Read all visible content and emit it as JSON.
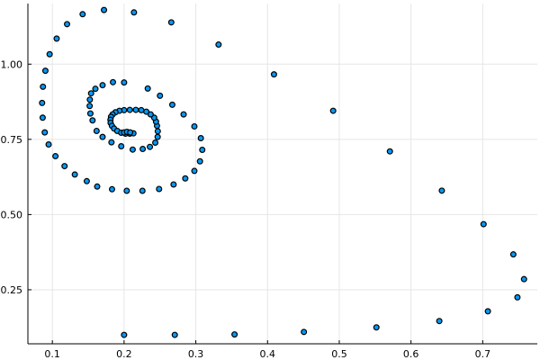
{
  "chart_data": {
    "type": "scatter",
    "title": "",
    "xlabel": "",
    "ylabel": "",
    "xlim": [
      0.0659,
      0.7761
    ],
    "ylim": [
      0.0703,
      1.2013
    ],
    "xticks": [
      0.1,
      0.2,
      0.3,
      0.4,
      0.5,
      0.6,
      0.7
    ],
    "xtick_labels": [
      "0.1",
      "0.2",
      "0.3",
      "0.4",
      "0.5",
      "0.6",
      "0.7"
    ],
    "yticks": [
      0.25,
      0.5,
      0.75,
      1.0
    ],
    "ytick_labels": [
      "0.25",
      "0.50",
      "0.75",
      "1.00"
    ],
    "grid": true,
    "legend": "none",
    "marker_color": "#009AFA",
    "marker_edge_color": "#000000",
    "series": [
      {
        "x": [
          0.2,
          0.2707,
          0.354,
          0.4507,
          0.5518,
          0.6395,
          0.7072,
          0.7484,
          0.7576,
          0.7427,
          0.7012,
          0.643,
          0.5706,
          0.4915,
          0.409,
          0.3317,
          0.2658,
          0.2138,
          0.172,
          0.1422,
          0.1205,
          0.106,
          0.0962,
          0.0903,
          0.0869,
          0.0857,
          0.0865,
          0.0894,
          0.0948,
          0.1043,
          0.117,
          0.1313,
          0.148,
          0.1625,
          0.1832,
          0.2037,
          0.2256,
          0.2488,
          0.269,
          0.2853,
          0.298,
          0.3058,
          0.309,
          0.307,
          0.298,
          0.283,
          0.2672,
          0.25,
          0.233,
          0.2,
          0.1845,
          0.17,
          0.16,
          0.154,
          0.1523,
          0.152,
          0.153,
          0.156,
          0.1617,
          0.17,
          0.1824,
          0.196,
          0.212,
          0.226,
          0.236,
          0.2435,
          0.2468,
          0.247,
          0.2459,
          0.2445,
          0.242,
          0.237,
          0.231,
          0.224,
          0.2164,
          0.208,
          0.2,
          0.1935,
          0.188,
          0.184,
          0.1818,
          0.181,
          0.1812,
          0.183,
          0.186,
          0.1905,
          0.196,
          0.202,
          0.208,
          0.213,
          0.2,
          0.204,
          0.2085
        ],
        "y": [
          0.1,
          0.1,
          0.1014,
          0.1097,
          0.125,
          0.146,
          0.1783,
          0.2247,
          0.2852,
          0.3675,
          0.468,
          0.5795,
          0.71,
          0.845,
          0.966,
          1.065,
          1.139,
          1.172,
          1.18,
          1.166,
          1.133,
          1.085,
          1.033,
          0.978,
          0.925,
          0.871,
          0.822,
          0.773,
          0.733,
          0.694,
          0.661,
          0.633,
          0.611,
          0.593,
          0.584,
          0.579,
          0.579,
          0.585,
          0.6,
          0.62,
          0.645,
          0.677,
          0.715,
          0.754,
          0.793,
          0.833,
          0.865,
          0.895,
          0.919,
          0.939,
          0.94,
          0.93,
          0.918,
          0.903,
          0.882,
          0.861,
          0.836,
          0.813,
          0.778,
          0.758,
          0.74,
          0.727,
          0.716,
          0.718,
          0.725,
          0.739,
          0.758,
          0.777,
          0.795,
          0.809,
          0.822,
          0.833,
          0.842,
          0.847,
          0.848,
          0.848,
          0.847,
          0.845,
          0.84,
          0.833,
          0.825,
          0.815,
          0.805,
          0.795,
          0.786,
          0.778,
          0.772,
          0.769,
          0.769,
          0.77,
          0.773,
          0.775,
          0.773
        ]
      }
    ]
  }
}
